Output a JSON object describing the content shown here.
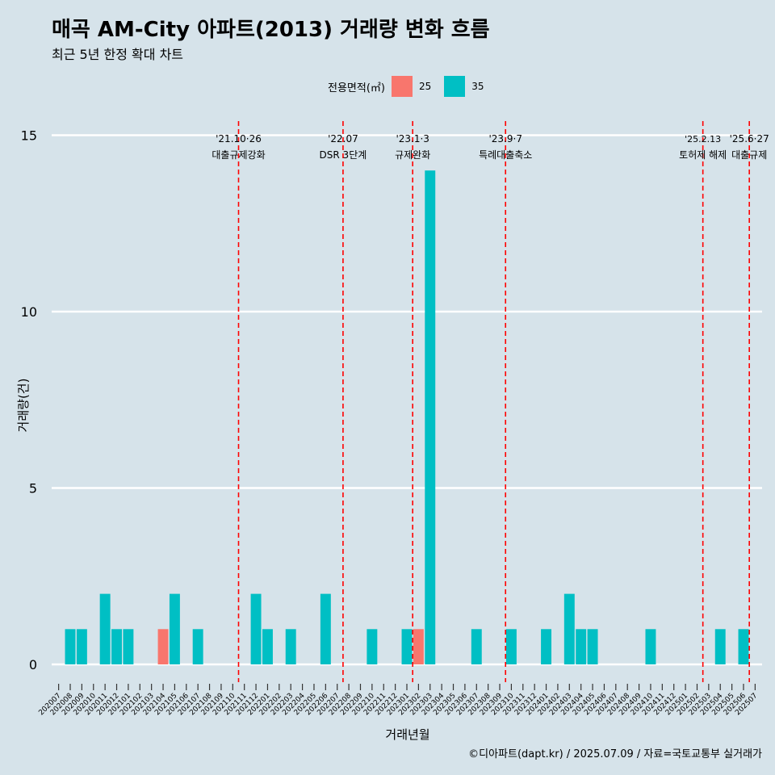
{
  "title": "매곡 AM-City 아파트(2013) 거래량 변화 흐름",
  "subtitle": "최근 5년 한정 확대 차트",
  "legend": {
    "title": "전용면적(㎡)",
    "items": [
      {
        "label": "25",
        "color": "#f8766d"
      },
      {
        "label": "35",
        "color": "#00bfc4"
      }
    ]
  },
  "caption": "©디아파트(dapt.kr) / 2025.07.09 / 자료=국토교통부 실거래가",
  "chart_data": {
    "type": "bar",
    "stacked": true,
    "xlabel": "거래년월",
    "ylabel": "거래량(건)",
    "ylim": [
      0,
      15
    ],
    "yticks": [
      0,
      5,
      10,
      15
    ],
    "grid": "horizontal",
    "legend_position": "top",
    "categories": [
      "202007",
      "202008",
      "202009",
      "202010",
      "202011",
      "202012",
      "202101",
      "202102",
      "202103",
      "202104",
      "202105",
      "202106",
      "202107",
      "202108",
      "202109",
      "202110",
      "202111",
      "202112",
      "202201",
      "202202",
      "202203",
      "202204",
      "202205",
      "202206",
      "202207",
      "202208",
      "202209",
      "202210",
      "202211",
      "202212",
      "202301",
      "202302",
      "202303",
      "202304",
      "202305",
      "202306",
      "202307",
      "202308",
      "202309",
      "202310",
      "202311",
      "202312",
      "202401",
      "202402",
      "202403",
      "202404",
      "202405",
      "202406",
      "202407",
      "202408",
      "202409",
      "202410",
      "202411",
      "202412",
      "202501",
      "202502",
      "202503",
      "202504",
      "202505",
      "202506",
      "202507"
    ],
    "series": [
      {
        "name": "25",
        "color": "#f8766d",
        "values": [
          0,
          0,
          0,
          0,
          0,
          0,
          0,
          0,
          0,
          1,
          0,
          0,
          0,
          0,
          0,
          0,
          0,
          0,
          0,
          0,
          0,
          0,
          0,
          0,
          0,
          0,
          0,
          0,
          0,
          0,
          0,
          1,
          0,
          0,
          0,
          0,
          0,
          0,
          0,
          0,
          0,
          0,
          0,
          0,
          0,
          0,
          0,
          0,
          0,
          0,
          0,
          0,
          0,
          0,
          0,
          0,
          0,
          0,
          0,
          0,
          0
        ]
      },
      {
        "name": "35",
        "color": "#00bfc4",
        "values": [
          0,
          1,
          1,
          0,
          2,
          1,
          1,
          0,
          0,
          0,
          2,
          0,
          1,
          0,
          0,
          0,
          0,
          2,
          1,
          0,
          1,
          0,
          0,
          2,
          0,
          0,
          0,
          1,
          0,
          0,
          1,
          0,
          14,
          0,
          0,
          0,
          1,
          0,
          0,
          1,
          0,
          0,
          1,
          0,
          2,
          1,
          1,
          0,
          0,
          0,
          0,
          1,
          0,
          0,
          0,
          0,
          0,
          1,
          0,
          1,
          0
        ]
      }
    ],
    "annotations": [
      {
        "date": "'21.10·26",
        "label": "대출규제강화",
        "x": 15.5
      },
      {
        "date": "'22.07",
        "label": "DSR 3단계",
        "x": 24.5
      },
      {
        "date": "'23.1·3",
        "label": "규제완화",
        "x": 30.5
      },
      {
        "date": "'23.9·7",
        "label": "특례대출축소",
        "x": 38.5
      },
      {
        "date": "'25.2.13",
        "label": "토허제 해제",
        "x": 55.5
      },
      {
        "date": "'25.6·27",
        "label": "대출규제",
        "x": 59.5
      }
    ],
    "annotation_line_color": "#ff0000"
  }
}
